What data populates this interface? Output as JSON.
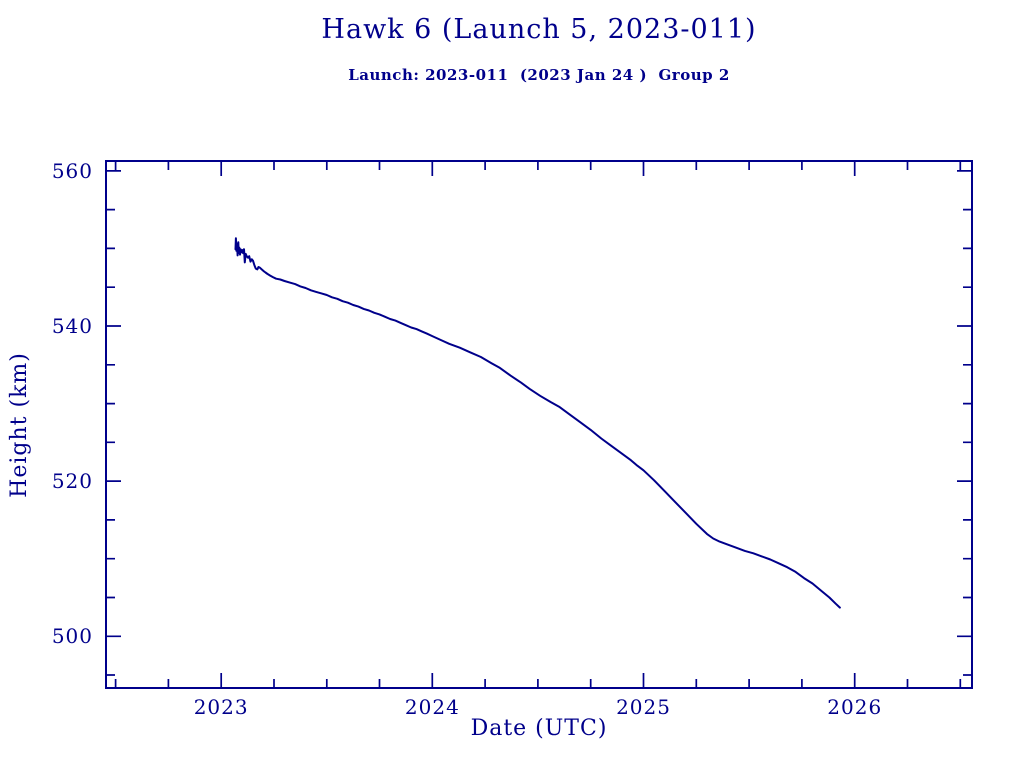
{
  "page": {
    "background_color": "#ffffff",
    "ink_color": "#00008b"
  },
  "chart_data": {
    "type": "line",
    "title": "Hawk 6 (Launch 5, 2023-011)",
    "subtitle": "Launch: 2023-011  (2023 Jan 24 )  Group 2",
    "xlabel": "Date (UTC)",
    "ylabel": "Height (km)",
    "xlim": [
      2022.45,
      2026.56
    ],
    "ylim": [
      493.2,
      561.4
    ],
    "x_major_ticks": [
      2023,
      2024,
      2025,
      2026
    ],
    "x_minor_step": 0.25,
    "y_major_ticks": [
      500,
      520,
      540,
      560
    ],
    "y_minor_step": 5,
    "grid": false,
    "legend": "none",
    "line_color": "#00008b",
    "series": [
      {
        "name": "orbital_height_km",
        "points": [
          [
            2023.068,
            549.9
          ],
          [
            2023.07,
            551.3
          ],
          [
            2023.072,
            549.7
          ],
          [
            2023.075,
            550.6
          ],
          [
            2023.078,
            549.1
          ],
          [
            2023.081,
            550.8
          ],
          [
            2023.083,
            549.4
          ],
          [
            2023.086,
            550.1
          ],
          [
            2023.089,
            549.2
          ],
          [
            2023.092,
            549.9
          ],
          [
            2023.096,
            549.5
          ],
          [
            2023.1,
            549.8
          ],
          [
            2023.104,
            549.4
          ],
          [
            2023.108,
            549.9
          ],
          [
            2023.112,
            548.2
          ],
          [
            2023.116,
            549.3
          ],
          [
            2023.121,
            549.0
          ],
          [
            2023.127,
            548.8
          ],
          [
            2023.133,
            549.0
          ],
          [
            2023.139,
            548.3
          ],
          [
            2023.145,
            548.6
          ],
          [
            2023.151,
            548.4
          ],
          [
            2023.158,
            547.8
          ],
          [
            2023.164,
            547.4
          ],
          [
            2023.171,
            547.3
          ],
          [
            2023.177,
            547.6
          ],
          [
            2023.184,
            547.5
          ],
          [
            2023.192,
            547.3
          ],
          [
            2023.2,
            547.1
          ],
          [
            2023.21,
            546.9
          ],
          [
            2023.22,
            546.7
          ],
          [
            2023.232,
            546.5
          ],
          [
            2023.245,
            546.3
          ],
          [
            2023.26,
            546.1
          ],
          [
            2023.28,
            546.0
          ],
          [
            2023.3,
            545.8
          ],
          [
            2023.325,
            545.6
          ],
          [
            2023.35,
            545.4
          ],
          [
            2023.375,
            545.1
          ],
          [
            2023.4,
            544.9
          ],
          [
            2023.425,
            544.6
          ],
          [
            2023.45,
            544.4
          ],
          [
            2023.475,
            544.2
          ],
          [
            2023.5,
            544.0
          ],
          [
            2023.525,
            543.7
          ],
          [
            2023.55,
            543.5
          ],
          [
            2023.575,
            543.2
          ],
          [
            2023.6,
            543.0
          ],
          [
            2023.625,
            542.7
          ],
          [
            2023.65,
            542.5
          ],
          [
            2023.675,
            542.2
          ],
          [
            2023.7,
            542.0
          ],
          [
            2023.725,
            541.7
          ],
          [
            2023.75,
            541.5
          ],
          [
            2023.775,
            541.2
          ],
          [
            2023.8,
            540.9
          ],
          [
            2023.825,
            540.7
          ],
          [
            2023.85,
            540.4
          ],
          [
            2023.875,
            540.1
          ],
          [
            2023.9,
            539.8
          ],
          [
            2023.925,
            539.6
          ],
          [
            2023.95,
            539.3
          ],
          [
            2023.975,
            539.0
          ],
          [
            2024.0,
            538.7
          ],
          [
            2024.04,
            538.2
          ],
          [
            2024.08,
            537.7
          ],
          [
            2024.13,
            537.2
          ],
          [
            2024.18,
            536.6
          ],
          [
            2024.23,
            536.0
          ],
          [
            2024.28,
            535.2
          ],
          [
            2024.32,
            534.6
          ],
          [
            2024.37,
            533.6
          ],
          [
            2024.42,
            532.7
          ],
          [
            2024.46,
            531.9
          ],
          [
            2024.51,
            531.0
          ],
          [
            2024.56,
            530.2
          ],
          [
            2024.6,
            529.6
          ],
          [
            2024.65,
            528.6
          ],
          [
            2024.7,
            527.6
          ],
          [
            2024.75,
            526.6
          ],
          [
            2024.8,
            525.5
          ],
          [
            2024.84,
            524.7
          ],
          [
            2024.89,
            523.7
          ],
          [
            2024.94,
            522.7
          ],
          [
            2024.97,
            522.0
          ],
          [
            2025.0,
            521.4
          ],
          [
            2025.05,
            520.1
          ],
          [
            2025.1,
            518.7
          ],
          [
            2025.15,
            517.3
          ],
          [
            2025.2,
            515.9
          ],
          [
            2025.25,
            514.5
          ],
          [
            2025.3,
            513.2
          ],
          [
            2025.33,
            512.6
          ],
          [
            2025.36,
            512.2
          ],
          [
            2025.4,
            511.8
          ],
          [
            2025.44,
            511.4
          ],
          [
            2025.48,
            511.0
          ],
          [
            2025.52,
            510.7
          ],
          [
            2025.56,
            510.3
          ],
          [
            2025.6,
            509.9
          ],
          [
            2025.64,
            509.4
          ],
          [
            2025.68,
            508.9
          ],
          [
            2025.72,
            508.3
          ],
          [
            2025.76,
            507.5
          ],
          [
            2025.8,
            506.8
          ],
          [
            2025.84,
            505.9
          ],
          [
            2025.88,
            505.0
          ],
          [
            2025.91,
            504.2
          ],
          [
            2025.93,
            503.7
          ]
        ]
      }
    ]
  }
}
